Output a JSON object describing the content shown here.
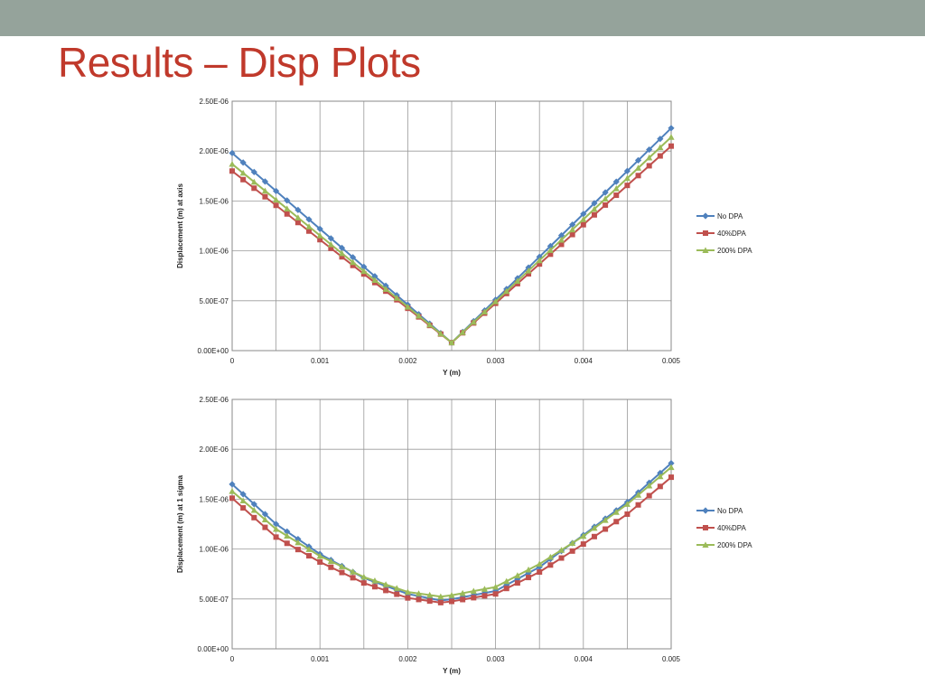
{
  "slide": {
    "title": "Results – Disp Plots"
  },
  "colors": {
    "top_band": "#95a39b",
    "title": "#c0392b",
    "no_dpa": "#4f81bd",
    "dpa_40": "#c0504d",
    "dpa_200": "#9bbb59"
  },
  "chart_data": [
    {
      "type": "line",
      "title": "",
      "xlabel": "Y (m)",
      "ylabel": "Displacement  (m) at axis",
      "xlim": [
        0,
        0.005
      ],
      "ylim": [
        0,
        2.5e-06
      ],
      "xticks": [
        0,
        0.001,
        0.002,
        0.003,
        0.004,
        0.005
      ],
      "xtick_labels": [
        "0",
        "0.001",
        "0.002",
        "0.003",
        "0.004",
        "0.005"
      ],
      "yticks": [
        0,
        5e-07,
        1e-06,
        1.5e-06,
        2e-06,
        2.5e-06
      ],
      "ytick_labels": [
        "0.00E+00",
        "5.00E-07",
        "1.00E-06",
        "1.50E-06",
        "2.00E-06",
        "2.50E-06"
      ],
      "grid": true,
      "legend": "right",
      "series": [
        {
          "name": "No DPA",
          "marker": "diamond",
          "color": "#4f81bd",
          "points": [
            [
              0,
              1.98e-06
            ],
            [
              0.0025,
              8e-08
            ],
            [
              0.005,
              2.23e-06
            ]
          ]
        },
        {
          "name": "40%DPA",
          "marker": "square",
          "color": "#c0504d",
          "points": [
            [
              0,
              1.8e-06
            ],
            [
              0.0025,
              8e-08
            ],
            [
              0.005,
              2.05e-06
            ]
          ]
        },
        {
          "name": "200% DPA",
          "marker": "triangle",
          "color": "#9bbb59",
          "points": [
            [
              0,
              1.87e-06
            ],
            [
              0.0025,
              8e-08
            ],
            [
              0.005,
              2.14e-06
            ]
          ]
        }
      ]
    },
    {
      "type": "line",
      "title": "",
      "xlabel": "Y (m)",
      "ylabel": "Displacement  (m) at 1 sigma",
      "xlim": [
        0,
        0.005
      ],
      "ylim": [
        0,
        2.5e-06
      ],
      "xticks": [
        0,
        0.001,
        0.002,
        0.003,
        0.004,
        0.005
      ],
      "xtick_labels": [
        "0",
        "0.001",
        "0.002",
        "0.003",
        "0.004",
        "0.005"
      ],
      "yticks": [
        0,
        5e-07,
        1e-06,
        1.5e-06,
        2e-06,
        2.5e-06
      ],
      "ytick_labels": [
        "0.00E+00",
        "5.00E-07",
        "1.00E-06",
        "1.50E-06",
        "2.00E-06",
        "2.50E-06"
      ],
      "grid": true,
      "legend": "right",
      "series": [
        {
          "name": "No DPA",
          "marker": "diamond",
          "color": "#4f81bd",
          "points": [
            [
              0,
              1.65e-06
            ],
            [
              0.0005,
              1.25e-06
            ],
            [
              0.001,
              9.5e-07
            ],
            [
              0.0015,
              7.1e-07
            ],
            [
              0.002,
              5.5e-07
            ],
            [
              0.0024,
              4.8e-07
            ],
            [
              0.003,
              5.8e-07
            ],
            [
              0.0035,
              8.2e-07
            ],
            [
              0.004,
              1.14e-06
            ],
            [
              0.0045,
              1.47e-06
            ],
            [
              0.005,
              1.86e-06
            ]
          ]
        },
        {
          "name": "40%DPA",
          "marker": "square",
          "color": "#c0504d",
          "points": [
            [
              0,
              1.51e-06
            ],
            [
              0.0005,
              1.12e-06
            ],
            [
              0.001,
              8.7e-07
            ],
            [
              0.0015,
              6.6e-07
            ],
            [
              0.002,
              5.1e-07
            ],
            [
              0.0024,
              4.6e-07
            ],
            [
              0.003,
              5.5e-07
            ],
            [
              0.0035,
              7.7e-07
            ],
            [
              0.004,
              1.05e-06
            ],
            [
              0.0045,
              1.35e-06
            ],
            [
              0.005,
              1.72e-06
            ]
          ]
        },
        {
          "name": "200% DPA",
          "marker": "triangle",
          "color": "#9bbb59",
          "points": [
            [
              0,
              1.58e-06
            ],
            [
              0.0005,
              1.2e-06
            ],
            [
              0.001,
              9.3e-07
            ],
            [
              0.0015,
              7.2e-07
            ],
            [
              0.002,
              5.7e-07
            ],
            [
              0.0024,
              5.2e-07
            ],
            [
              0.003,
              6.2e-07
            ],
            [
              0.0035,
              8.5e-07
            ],
            [
              0.004,
              1.13e-06
            ],
            [
              0.0045,
              1.45e-06
            ],
            [
              0.005,
              1.82e-06
            ]
          ]
        }
      ]
    }
  ]
}
